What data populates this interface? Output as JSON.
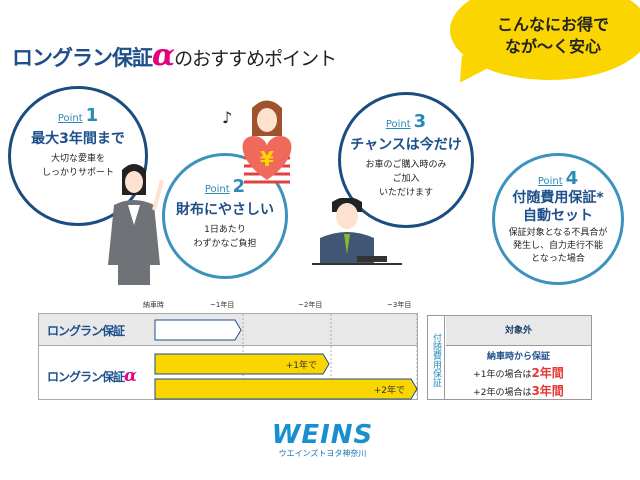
{
  "title": {
    "brand": "ロングラン保証",
    "alpha": "α",
    "rest": "のおすすめポイント"
  },
  "bubble": {
    "lines": [
      "こんなにお得で",
      "なが〜く安心"
    ]
  },
  "points": [
    {
      "label": "Point",
      "num": "1",
      "heading": "最大3年間まで",
      "text": [
        "大切な愛車を",
        "しっかりサポート"
      ]
    },
    {
      "label": "Point",
      "num": "2",
      "heading": "財布にやさしい",
      "text": [
        "1日あたり",
        "わずかなご負担"
      ]
    },
    {
      "label": "Point",
      "num": "3",
      "heading": "チャンスは今だけ",
      "text": [
        "お車のご購入時のみ",
        "ご加入",
        "いただけます"
      ]
    },
    {
      "label": "Point",
      "num": "4",
      "heading": "付随費用保証*",
      "heading2": "自動セット",
      "text": [
        "保証対象となる不具合が",
        "発生し、自力走行不能",
        "となった場合"
      ]
    }
  ],
  "chart": {
    "ticks": [
      "納車時",
      "~1年目",
      "~2年目",
      "~3年目"
    ],
    "rows": [
      {
        "label": "ロングラン保証",
        "bars": [
          {
            "years": 1,
            "label": ""
          }
        ]
      },
      {
        "label": "ロングラン保証",
        "alpha": "α",
        "bars": [
          {
            "years": 2,
            "label": "+1年で"
          },
          {
            "years": 3,
            "label": "+2年で"
          }
        ]
      }
    ],
    "colors": {
      "standard": "#ffffff",
      "alpha": "#fbd500",
      "border": "#1d4f8a"
    }
  },
  "side": {
    "vertical": "付随費用保証",
    "top": "対象外",
    "lead": "納車時から保証",
    "lines": [
      {
        "pre": "+1年の場合は",
        "em": "2年間"
      },
      {
        "pre": "+2年の場合は",
        "em": "3年間"
      }
    ]
  },
  "logo": {
    "main": "WEINS",
    "sub": "ウエインズトヨタ神奈川"
  },
  "icons": {
    "heart_symbol": "¥",
    "music_note": "♪"
  }
}
